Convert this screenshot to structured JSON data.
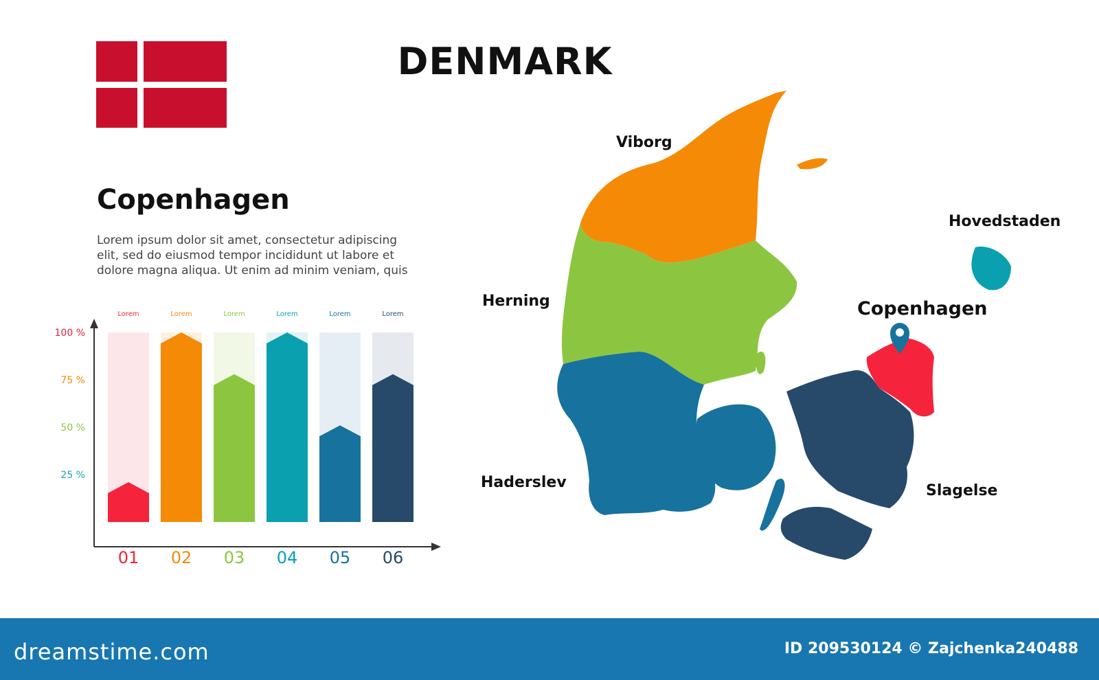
{
  "title": "DENMARK",
  "city_heading": "Copenhagen",
  "lorem_text": "Lorem ipsum dolor sit amet, consectetur adipiscing elit, sed do eiusmod tempor incididunt ut labore et dolore magna aliqua. Ut enim ad minim veniam, quis",
  "colors": {
    "red": "#f5233b",
    "orange": "#f58a07",
    "green": "#8cc640",
    "teal": "#0aa0b0",
    "blue": "#17729e",
    "navy": "#274a6b",
    "flag_red": "#c8102e",
    "footer": "#1877b0"
  },
  "chart_data": {
    "type": "bar",
    "categories": [
      "01",
      "02",
      "03",
      "04",
      "05",
      "06"
    ],
    "top_labels": [
      "Lorem",
      "Lorem",
      "Lorem",
      "Lorem",
      "Lorem",
      "Lorem"
    ],
    "values": [
      21,
      100,
      78,
      100,
      51,
      78
    ],
    "yticks": [
      {
        "value": 25,
        "label": "25 %"
      },
      {
        "value": 50,
        "label": "50 %"
      },
      {
        "value": 75,
        "label": "75 %"
      },
      {
        "value": 100,
        "label": "100 %"
      }
    ],
    "ylim": [
      0,
      100
    ],
    "bar_colors": [
      "#f5233b",
      "#f58a07",
      "#8cc640",
      "#0aa0b0",
      "#17729e",
      "#274a6b"
    ],
    "track_colors": [
      "#fde6e9",
      "#fdf0e1",
      "#f1f8e6",
      "#e3f3f5",
      "#e5eef4",
      "#e6eaee"
    ],
    "tick_colors": [
      "#17a2b0",
      "#8cc640",
      "#f58a07",
      "#e0203a"
    ],
    "title": "",
    "xlabel": "",
    "ylabel": ""
  },
  "map": {
    "regions": [
      {
        "name": "Viborg",
        "color": "#f58a07"
      },
      {
        "name": "Herning",
        "color": "#8cc640"
      },
      {
        "name": "Haderslev",
        "color": "#17729e"
      },
      {
        "name": "Slagelse",
        "color": "#274a6b"
      },
      {
        "name": "Copenhagen",
        "color": "#f5233b"
      },
      {
        "name": "Hovedstaden",
        "color": "#0aa0b0"
      }
    ],
    "pin_icon": "location-pin-icon"
  },
  "footer": {
    "brand": "dreamstime.com",
    "id_text": "ID 209530124 © Zajchenka240488"
  }
}
